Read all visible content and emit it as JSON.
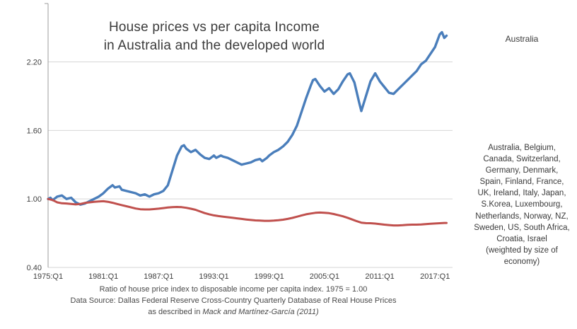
{
  "title": {
    "line1": "House prices vs per capita Income",
    "line2": "in Australia and the developed world"
  },
  "annotations": {
    "australia_label": "Australia",
    "world_label": "Australia, Belgium,\nCanada, Switzerland,\nGermany, Denmark,\nSpain, Finland, France,\nUK, Ireland, Italy, Japan,\nS.Korea, Luxembourg,\nNetherlands, Norway, NZ,\nSweden, US, South Africa,\nCroatia, Israel\n(weighted by size of\neconomy)"
  },
  "caption": {
    "line1": "Ratio of house price index to disposable income per capita index.  1975 = 1.00",
    "line2": "Data Source: Dallas Federal Reserve Cross-Country Quarterly Database of Real House Prices",
    "line3_prefix": "as described in ",
    "line3_citation": "Mack and Martínez-García (2011)"
  },
  "chart_data": {
    "type": "line",
    "title": "House prices vs per capita Income in Australia and the developed world",
    "xlabel": "",
    "ylabel": "Ratio of house price index to disposable income per capita index (1975 = 1.00)",
    "xlim": [
      1975,
      2018.9
    ],
    "ylim": [
      0.4,
      2.68
    ],
    "grid": true,
    "grid_color": "#d6d6d6",
    "axis_color": "#9c9c9c",
    "legend_position": "right-annotations",
    "yticks": [
      {
        "value": 0.4,
        "label": "0.40"
      },
      {
        "value": 1.0,
        "label": "1.00"
      },
      {
        "value": 1.6,
        "label": "1.60"
      },
      {
        "value": 2.2,
        "label": "2.20"
      }
    ],
    "xticks": [
      {
        "value": 1975,
        "label": "1975:Q1"
      },
      {
        "value": 1981,
        "label": "1981:Q1"
      },
      {
        "value": 1987,
        "label": "1987:Q1"
      },
      {
        "value": 1993,
        "label": "1993:Q1"
      },
      {
        "value": 1999,
        "label": "1999:Q1"
      },
      {
        "value": 2005,
        "label": "2005:Q1"
      },
      {
        "value": 2011,
        "label": "2011:Q1"
      },
      {
        "value": 2017,
        "label": "2017:Q1"
      }
    ],
    "series": [
      {
        "name": "Australia",
        "color": "#4a7ebb",
        "width": 3.4,
        "x": [
          1975,
          1975.25,
          1975.5,
          1976,
          1976.5,
          1977,
          1977.5,
          1978,
          1978.5,
          1979,
          1979.5,
          1980,
          1980.5,
          1981,
          1981.5,
          1982,
          1982.25,
          1982.75,
          1983,
          1983.5,
          1984,
          1984.5,
          1985,
          1985.5,
          1986,
          1986.5,
          1987,
          1987.5,
          1988,
          1988.5,
          1989,
          1989.5,
          1989.75,
          1990,
          1990.5,
          1991,
          1991.5,
          1992,
          1992.5,
          1993,
          1993.25,
          1993.75,
          1994,
          1994.5,
          1995,
          1995.5,
          1996,
          1996.5,
          1997,
          1997.5,
          1998,
          1998.25,
          1998.75,
          1999,
          1999.5,
          2000,
          2000.5,
          2001,
          2001.5,
          2002,
          2002.5,
          2003,
          2003.5,
          2003.75,
          2004,
          2004.5,
          2005,
          2005.5,
          2006,
          2006.5,
          2007,
          2007.5,
          2007.75,
          2008.25,
          2008.75,
          2009,
          2009.5,
          2010,
          2010.5,
          2011,
          2011.5,
          2012,
          2012.5,
          2013,
          2013.5,
          2014,
          2014.5,
          2015,
          2015.5,
          2016,
          2016.5,
          2017,
          2017.5,
          2017.75,
          2018,
          2018.25
        ],
        "y": [
          1.0,
          1.01,
          0.99,
          1.02,
          1.03,
          1.0,
          1.01,
          0.97,
          0.95,
          0.96,
          0.98,
          1.0,
          1.02,
          1.05,
          1.09,
          1.12,
          1.1,
          1.11,
          1.08,
          1.07,
          1.06,
          1.05,
          1.03,
          1.04,
          1.02,
          1.04,
          1.05,
          1.07,
          1.12,
          1.25,
          1.38,
          1.46,
          1.47,
          1.44,
          1.41,
          1.43,
          1.39,
          1.36,
          1.35,
          1.38,
          1.36,
          1.38,
          1.37,
          1.36,
          1.34,
          1.32,
          1.3,
          1.31,
          1.32,
          1.34,
          1.35,
          1.33,
          1.36,
          1.38,
          1.41,
          1.43,
          1.46,
          1.5,
          1.56,
          1.64,
          1.76,
          1.88,
          1.99,
          2.04,
          2.05,
          1.99,
          1.94,
          1.97,
          1.92,
          1.96,
          2.03,
          2.09,
          2.1,
          2.02,
          1.85,
          1.77,
          1.9,
          2.03,
          2.1,
          2.03,
          1.98,
          1.93,
          1.92,
          1.96,
          2.0,
          2.04,
          2.08,
          2.12,
          2.18,
          2.21,
          2.27,
          2.33,
          2.44,
          2.46,
          2.41,
          2.43
        ]
      },
      {
        "name": "Developed world (23 countries, weighted by size of economy)",
        "color": "#c0504d",
        "width": 3.0,
        "x": [
          1975,
          1975.5,
          1976,
          1976.5,
          1977,
          1978,
          1978.5,
          1979,
          1979.5,
          1980,
          1980.5,
          1981,
          1981.5,
          1982,
          1982.5,
          1983,
          1983.5,
          1984,
          1984.5,
          1985,
          1985.5,
          1986,
          1986.5,
          1987,
          1987.5,
          1988,
          1988.5,
          1989,
          1989.5,
          1990,
          1990.5,
          1991,
          1991.5,
          1992,
          1992.5,
          1993,
          1993.5,
          1994,
          1994.5,
          1995,
          1995.5,
          1996,
          1996.5,
          1997,
          1997.5,
          1998,
          1998.5,
          1999,
          1999.5,
          2000,
          2000.5,
          2001,
          2001.5,
          2002,
          2002.5,
          2003,
          2003.5,
          2004,
          2004.5,
          2005,
          2005.5,
          2006,
          2006.5,
          2007,
          2007.5,
          2008,
          2008.5,
          2009,
          2009.5,
          2010,
          2010.5,
          2011,
          2011.5,
          2012,
          2012.5,
          2013,
          2013.5,
          2014,
          2014.5,
          2015,
          2015.5,
          2016,
          2016.5,
          2017,
          2017.5,
          2018,
          2018.25
        ],
        "y": [
          1.0,
          0.99,
          0.97,
          0.962,
          0.96,
          0.952,
          0.956,
          0.965,
          0.97,
          0.975,
          0.978,
          0.98,
          0.975,
          0.966,
          0.956,
          0.946,
          0.936,
          0.926,
          0.916,
          0.91,
          0.908,
          0.908,
          0.911,
          0.915,
          0.92,
          0.925,
          0.928,
          0.93,
          0.928,
          0.922,
          0.914,
          0.905,
          0.89,
          0.876,
          0.865,
          0.856,
          0.85,
          0.845,
          0.84,
          0.835,
          0.83,
          0.825,
          0.82,
          0.816,
          0.812,
          0.81,
          0.808,
          0.808,
          0.81,
          0.813,
          0.818,
          0.825,
          0.834,
          0.844,
          0.855,
          0.865,
          0.872,
          0.878,
          0.881,
          0.879,
          0.875,
          0.868,
          0.858,
          0.848,
          0.835,
          0.82,
          0.805,
          0.792,
          0.788,
          0.787,
          0.784,
          0.78,
          0.775,
          0.771,
          0.768,
          0.768,
          0.77,
          0.773,
          0.775,
          0.775,
          0.777,
          0.78,
          0.782,
          0.785,
          0.787,
          0.79,
          0.79
        ]
      }
    ]
  }
}
